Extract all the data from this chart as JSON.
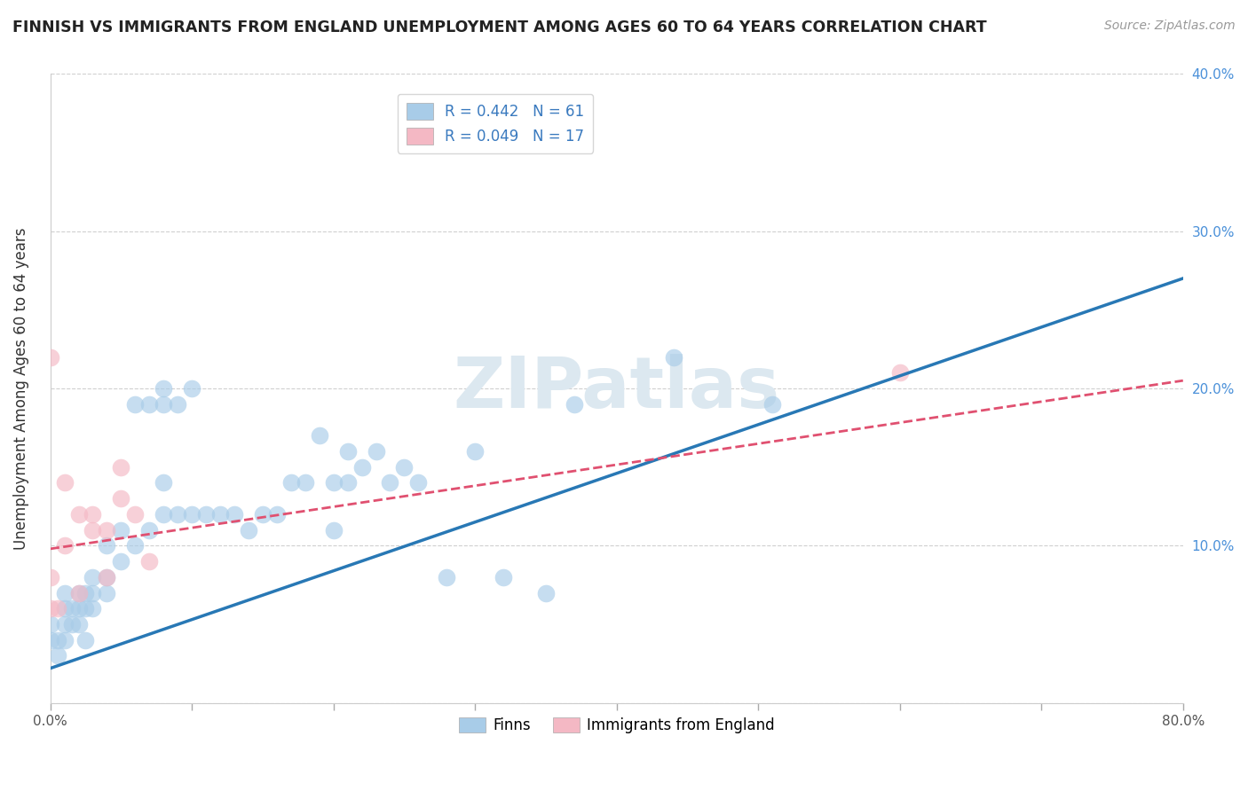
{
  "title": "FINNISH VS IMMIGRANTS FROM ENGLAND UNEMPLOYMENT AMONG AGES 60 TO 64 YEARS CORRELATION CHART",
  "source": "Source: ZipAtlas.com",
  "ylabel": "Unemployment Among Ages 60 to 64 years",
  "xlim": [
    0.0,
    0.8
  ],
  "ylim": [
    0.0,
    0.4
  ],
  "xticks": [
    0.0,
    0.1,
    0.2,
    0.3,
    0.4,
    0.5,
    0.6,
    0.7,
    0.8
  ],
  "yticks": [
    0.0,
    0.1,
    0.2,
    0.3,
    0.4
  ],
  "xtick_labels": [
    "0.0%",
    "",
    "",
    "",
    "",
    "",
    "",
    "",
    "80.0%"
  ],
  "ytick_labels_right": [
    "",
    "10.0%",
    "20.0%",
    "30.0%",
    "40.0%"
  ],
  "legend_line1": "R = 0.442   N = 61",
  "legend_line2": "R = 0.049   N = 17",
  "finns_label": "Finns",
  "immigrants_label": "Immigrants from England",
  "blue_color": "#a8cce8",
  "pink_color": "#f4b8c4",
  "blue_line_color": "#2878b5",
  "pink_line_color": "#e05070",
  "watermark_color": "#dce8f0",
  "grid_color": "#d0d0d0",
  "finns_x": [
    0.0,
    0.0,
    0.005,
    0.005,
    0.01,
    0.01,
    0.01,
    0.01,
    0.015,
    0.015,
    0.02,
    0.02,
    0.02,
    0.025,
    0.025,
    0.025,
    0.03,
    0.03,
    0.03,
    0.04,
    0.04,
    0.04,
    0.05,
    0.05,
    0.06,
    0.06,
    0.07,
    0.07,
    0.08,
    0.08,
    0.08,
    0.08,
    0.09,
    0.09,
    0.1,
    0.1,
    0.11,
    0.12,
    0.13,
    0.14,
    0.15,
    0.16,
    0.17,
    0.18,
    0.19,
    0.2,
    0.2,
    0.21,
    0.21,
    0.22,
    0.23,
    0.24,
    0.25,
    0.26,
    0.28,
    0.3,
    0.32,
    0.35,
    0.37,
    0.44,
    0.51
  ],
  "finns_y": [
    0.04,
    0.05,
    0.03,
    0.04,
    0.04,
    0.05,
    0.06,
    0.07,
    0.05,
    0.06,
    0.05,
    0.06,
    0.07,
    0.04,
    0.06,
    0.07,
    0.06,
    0.07,
    0.08,
    0.07,
    0.08,
    0.1,
    0.09,
    0.11,
    0.1,
    0.19,
    0.11,
    0.19,
    0.12,
    0.14,
    0.19,
    0.2,
    0.12,
    0.19,
    0.12,
    0.2,
    0.12,
    0.12,
    0.12,
    0.11,
    0.12,
    0.12,
    0.14,
    0.14,
    0.17,
    0.11,
    0.14,
    0.14,
    0.16,
    0.15,
    0.16,
    0.14,
    0.15,
    0.14,
    0.08,
    0.16,
    0.08,
    0.07,
    0.19,
    0.22,
    0.19
  ],
  "immigrants_x": [
    0.0,
    0.0,
    0.0,
    0.005,
    0.01,
    0.01,
    0.02,
    0.02,
    0.03,
    0.03,
    0.04,
    0.04,
    0.05,
    0.05,
    0.06,
    0.07,
    0.6
  ],
  "immigrants_y": [
    0.06,
    0.08,
    0.22,
    0.06,
    0.1,
    0.14,
    0.07,
    0.12,
    0.11,
    0.12,
    0.08,
    0.11,
    0.13,
    0.15,
    0.12,
    0.09,
    0.21
  ],
  "blue_line_x": [
    0.0,
    0.8
  ],
  "blue_line_y": [
    0.022,
    0.27
  ],
  "pink_line_x": [
    0.0,
    0.8
  ],
  "pink_line_y": [
    0.098,
    0.205
  ]
}
